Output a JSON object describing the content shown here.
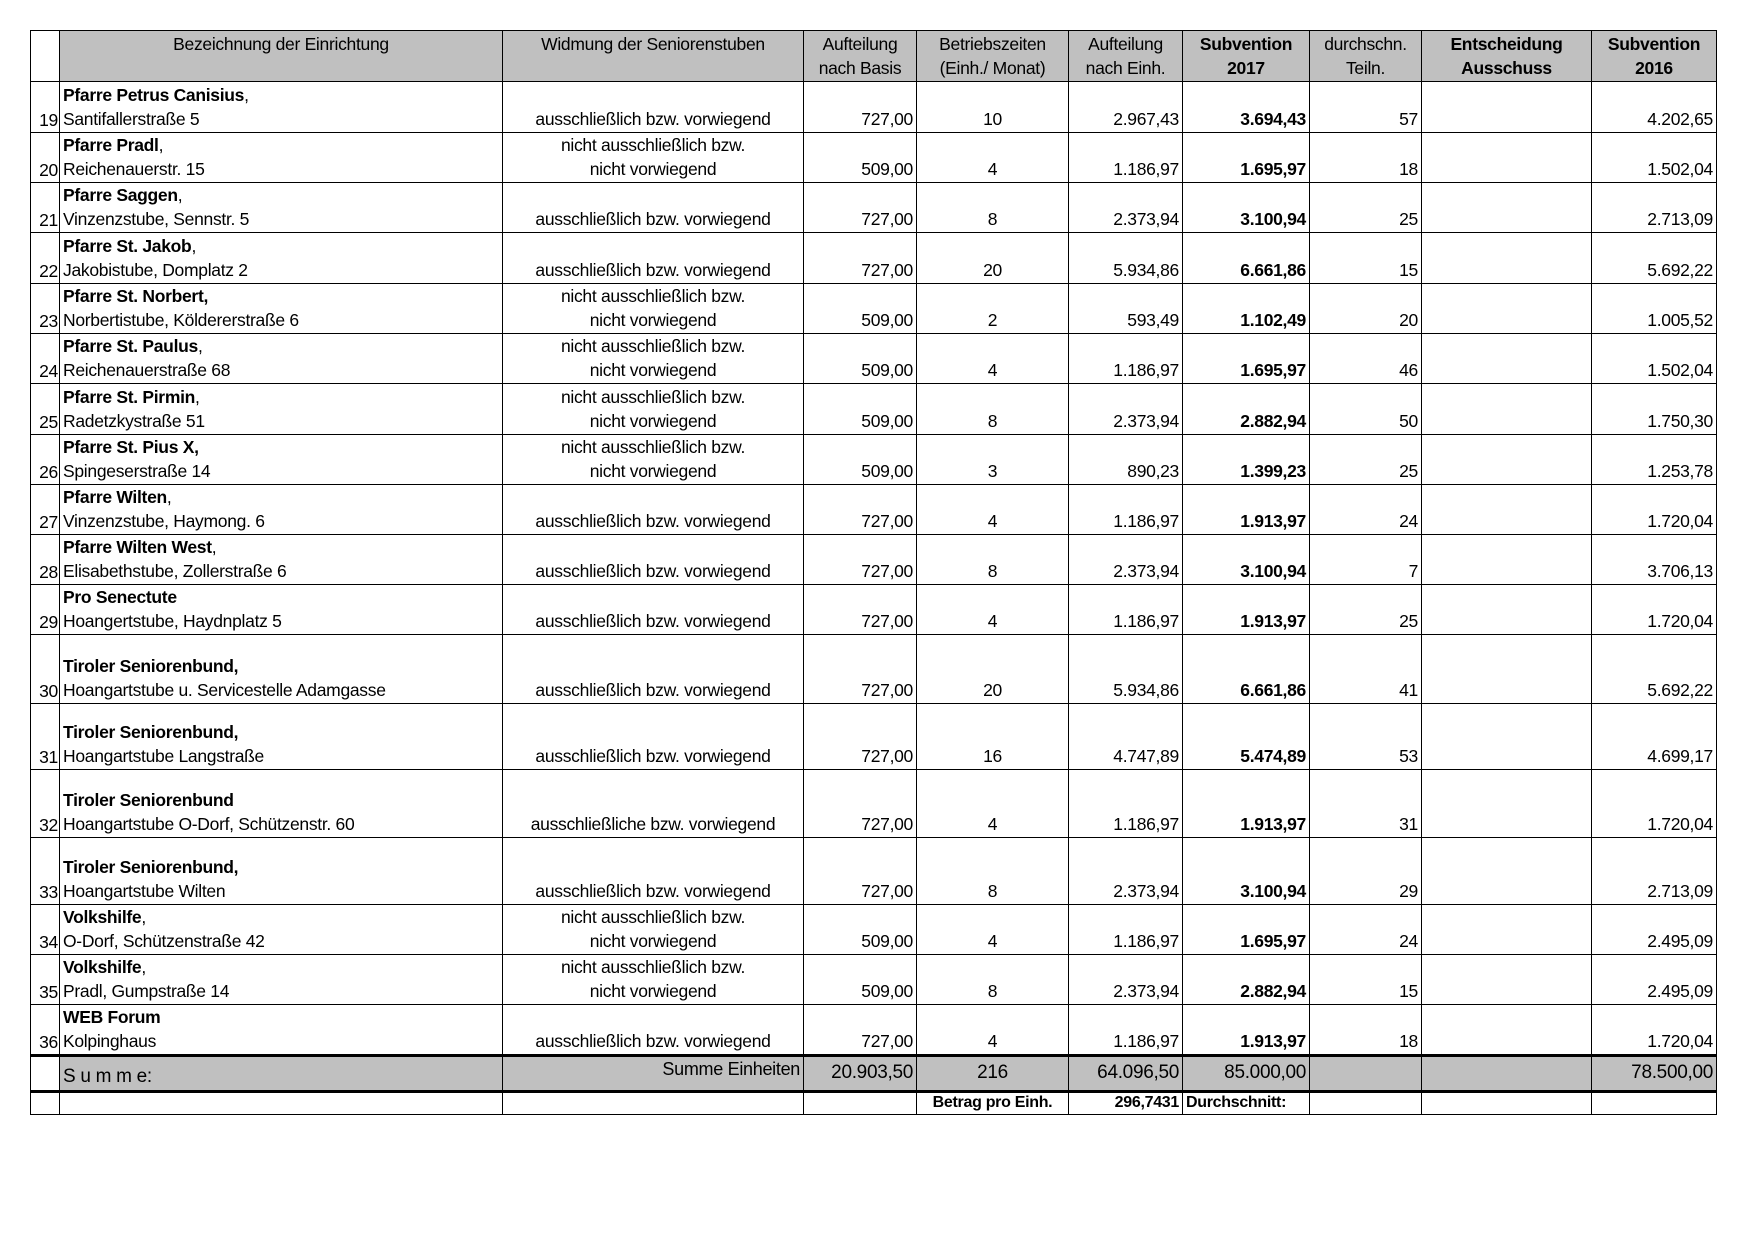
{
  "header": {
    "columns": [
      {
        "lines": [
          ""
        ],
        "bold": false
      },
      {
        "lines": [
          "Bezeichnung der Einrichtung"
        ],
        "bold": false
      },
      {
        "lines": [
          "Widmung der Seniorenstuben"
        ],
        "bold": false
      },
      {
        "lines": [
          "Aufteilung",
          "nach Basis"
        ],
        "bold": false
      },
      {
        "lines": [
          "Betriebszeiten",
          "(Einh./ Monat)"
        ],
        "bold": false
      },
      {
        "lines": [
          "Aufteilung",
          "nach Einh."
        ],
        "bold": false
      },
      {
        "lines": [
          "Subvention",
          "2017"
        ],
        "bold": true
      },
      {
        "lines": [
          "durchschn.",
          "Teiln."
        ],
        "bold": false
      },
      {
        "lines": [
          "Entscheidung",
          "Ausschuss"
        ],
        "bold": true
      },
      {
        "lines": [
          "Subvention",
          "2016"
        ],
        "bold": true
      }
    ]
  },
  "rows": [
    {
      "nr": "19",
      "name_bold": "Pfarre Petrus Canisius",
      "name_rest": ",",
      "address": "Santifallerstraße 5",
      "widmung": [
        "ausschließlich bzw. vorwiegend"
      ],
      "basis": "727,00",
      "einh": "10",
      "nach_einh": "2.967,43",
      "sub2017": "3.694,43",
      "teiln": "57",
      "entscheidung": "",
      "sub2016": "4.202,65"
    },
    {
      "nr": "20",
      "name_bold": "Pfarre Pradl",
      "name_rest": ",",
      "address": "Reichenauerstr. 15",
      "widmung": [
        "nicht ausschließlich bzw.",
        "nicht vorwiegend"
      ],
      "basis": "509,00",
      "einh": "4",
      "nach_einh": "1.186,97",
      "sub2017": "1.695,97",
      "teiln": "18",
      "entscheidung": "",
      "sub2016": "1.502,04"
    },
    {
      "nr": "21",
      "name_bold": "Pfarre Saggen",
      "name_rest": ",",
      "address": "Vinzenzstube,  Sennstr. 5",
      "widmung": [
        "ausschließlich bzw. vorwiegend"
      ],
      "basis": "727,00",
      "einh": "8",
      "nach_einh": "2.373,94",
      "sub2017": "3.100,94",
      "teiln": "25",
      "entscheidung": "",
      "sub2016": "2.713,09"
    },
    {
      "nr": "22",
      "name_bold": "Pfarre St. Jakob",
      "name_rest": ",",
      "address": "Jakobistube, Domplatz 2",
      "widmung": [
        "ausschließlich bzw. vorwiegend"
      ],
      "basis": "727,00",
      "einh": "20",
      "nach_einh": "5.934,86",
      "sub2017": "6.661,86",
      "teiln": "15",
      "entscheidung": "",
      "sub2016": "5.692,22"
    },
    {
      "nr": "23",
      "name_bold": "Pfarre St. Norbert,",
      "name_rest": "",
      "address": "Norbertistube, Köldererstraße 6",
      "widmung": [
        "nicht ausschließlich bzw.",
        "nicht vorwiegend"
      ],
      "basis": "509,00",
      "einh": "2",
      "nach_einh": "593,49",
      "sub2017": "1.102,49",
      "teiln": "20",
      "entscheidung": "",
      "sub2016": "1.005,52"
    },
    {
      "nr": "24",
      "name_bold": "Pfarre St. Paulus",
      "name_rest": ",",
      "address": "Reichenauerstraße 68",
      "widmung": [
        "nicht ausschließlich bzw.",
        "nicht vorwiegend"
      ],
      "basis": "509,00",
      "einh": "4",
      "nach_einh": "1.186,97",
      "sub2017": "1.695,97",
      "teiln": "46",
      "entscheidung": "",
      "sub2016": "1.502,04"
    },
    {
      "nr": "25",
      "name_bold": "Pfarre St. Pirmin",
      "name_rest": ",",
      "address": "Radetzkystraße 51",
      "widmung": [
        "nicht ausschließlich bzw.",
        "nicht vorwiegend"
      ],
      "basis": "509,00",
      "einh": "8",
      "nach_einh": "2.373,94",
      "sub2017": "2.882,94",
      "teiln": "50",
      "entscheidung": "",
      "sub2016": "1.750,30"
    },
    {
      "nr": "26",
      "name_bold": "Pfarre St. Pius X,",
      "name_rest": "",
      "address": "Spingeserstraße 14",
      "widmung": [
        "nicht ausschließlich bzw.",
        "nicht vorwiegend"
      ],
      "basis": "509,00",
      "einh": "3",
      "nach_einh": "890,23",
      "sub2017": "1.399,23",
      "teiln": "25",
      "entscheidung": "",
      "sub2016": "1.253,78"
    },
    {
      "nr": "27",
      "name_bold": "Pfarre Wilten",
      "name_rest": ",",
      "address": "Vinzenzstube, Haymong.  6",
      "widmung": [
        "ausschließlich bzw. vorwiegend"
      ],
      "basis": "727,00",
      "einh": "4",
      "nach_einh": "1.186,97",
      "sub2017": "1.913,97",
      "teiln": "24",
      "entscheidung": "",
      "sub2016": "1.720,04"
    },
    {
      "nr": "28",
      "name_bold": "Pfarre Wilten West",
      "name_rest": ",",
      "address": "Elisabethstube, Zollerstraße 6",
      "widmung": [
        "ausschließlich bzw. vorwiegend"
      ],
      "basis": "727,00",
      "einh": "8",
      "nach_einh": "2.373,94",
      "sub2017": "3.100,94",
      "teiln": "7",
      "entscheidung": "",
      "sub2016": "3.706,13"
    },
    {
      "nr": "29",
      "name_bold": "Pro Senectute",
      "name_rest": "",
      "address": "Hoangertstube, Haydnplatz 5",
      "widmung": [
        "ausschließlich bzw. vorwiegend"
      ],
      "basis": "727,00",
      "einh": "4",
      "nach_einh": "1.186,97",
      "sub2017": "1.913,97",
      "teiln": "25",
      "entscheidung": "",
      "sub2016": "1.720,04"
    },
    {
      "nr": "30",
      "name_bold": "Tiroler Seniorenbund,",
      "name_rest": "",
      "address": "Hoangartstube u. Servicestelle Adamgasse",
      "widmung": [
        "ausschließlich bzw. vorwiegend"
      ],
      "basis": "727,00",
      "einh": "20",
      "nach_einh": "5.934,86",
      "sub2017": "6.661,86",
      "teiln": "41",
      "entscheidung": "",
      "sub2016": "5.692,22"
    },
    {
      "nr": "31",
      "name_bold": "Tiroler Seniorenbund,",
      "name_rest": "",
      "address": "Hoangartstube Langstraße",
      "widmung": [
        "ausschließlich bzw. vorwiegend"
      ],
      "basis": "727,00",
      "einh": "16",
      "nach_einh": "4.747,89",
      "sub2017": "5.474,89",
      "teiln": "53",
      "entscheidung": "",
      "sub2016": "4.699,17"
    },
    {
      "nr": "32",
      "name_bold": "Tiroler Seniorenbund",
      "name_rest": "",
      "address": "Hoangartstube O-Dorf, Schützenstr. 60",
      "widmung": [
        "ausschließliche bzw. vorwiegend"
      ],
      "basis": "727,00",
      "einh": "4",
      "nach_einh": "1.186,97",
      "sub2017": "1.913,97",
      "teiln": "31",
      "entscheidung": "",
      "sub2016": "1.720,04"
    },
    {
      "nr": "33",
      "name_bold": "Tiroler Seniorenbund,",
      "name_rest": "",
      "address": "Hoangartstube Wilten",
      "widmung": [
        "ausschließlich bzw. vorwiegend"
      ],
      "basis": "727,00",
      "einh": "8",
      "nach_einh": "2.373,94",
      "sub2017": "3.100,94",
      "teiln": "29",
      "entscheidung": "",
      "sub2016": "2.713,09"
    },
    {
      "nr": "34",
      "name_bold": "Volkshilfe",
      "name_rest": ",",
      "address": "O-Dorf, Schützenstraße 42",
      "widmung": [
        "nicht ausschließlich bzw.",
        "nicht vorwiegend"
      ],
      "basis": "509,00",
      "einh": "4",
      "nach_einh": "1.186,97",
      "sub2017": "1.695,97",
      "teiln": "24",
      "entscheidung": "",
      "sub2016": "2.495,09"
    },
    {
      "nr": "35",
      "name_bold": "Volkshilfe",
      "name_rest": ",",
      "address": "Pradl, Gumpstraße 14",
      "widmung": [
        "nicht ausschließlich bzw.",
        "nicht vorwiegend"
      ],
      "basis": "509,00",
      "einh": "8",
      "nach_einh": "2.373,94",
      "sub2017": "2.882,94",
      "teiln": "15",
      "entscheidung": "",
      "sub2016": "2.495,09"
    },
    {
      "nr": "36",
      "name_bold": "WEB Forum",
      "name_rest": "",
      "address": "Kolpinghaus",
      "widmung": [
        "ausschließlich bzw. vorwiegend"
      ],
      "basis": "727,00",
      "einh": "4",
      "nach_einh": "1.186,97",
      "sub2017": "1.913,97",
      "teiln": "18",
      "entscheidung": "",
      "sub2016": "1.720,04"
    }
  ],
  "summary": {
    "label": "S u m m e:",
    "einheiten_label": "Summe Einheiten",
    "basis": "20.903,50",
    "einh": "216",
    "nach_einh": "64.096,50",
    "sub2017": "85.000,00",
    "teiln": "",
    "entscheidung": "",
    "sub2016": "78.500,00"
  },
  "footer": {
    "betrag_label": "Betrag pro Einh.",
    "betrag_value": "296,7431",
    "durchschnitt_label": "Durchschnitt:"
  }
}
